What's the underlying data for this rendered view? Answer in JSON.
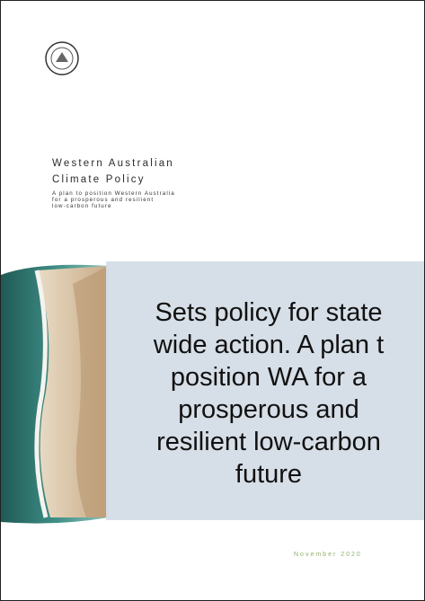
{
  "cover": {
    "title_lines": [
      "Western Australian",
      "Climate Policy"
    ],
    "subtitle_lines": [
      "A plan to position Western Australia",
      "for a prosperous and resilient",
      "low-carbon future"
    ],
    "date": "November 2020"
  },
  "overlay": {
    "lines": [
      "Sets policy for state",
      "wide action. A plan t",
      "position WA for a",
      "prosperous and",
      "resilient low-carbon",
      "future"
    ]
  }
}
